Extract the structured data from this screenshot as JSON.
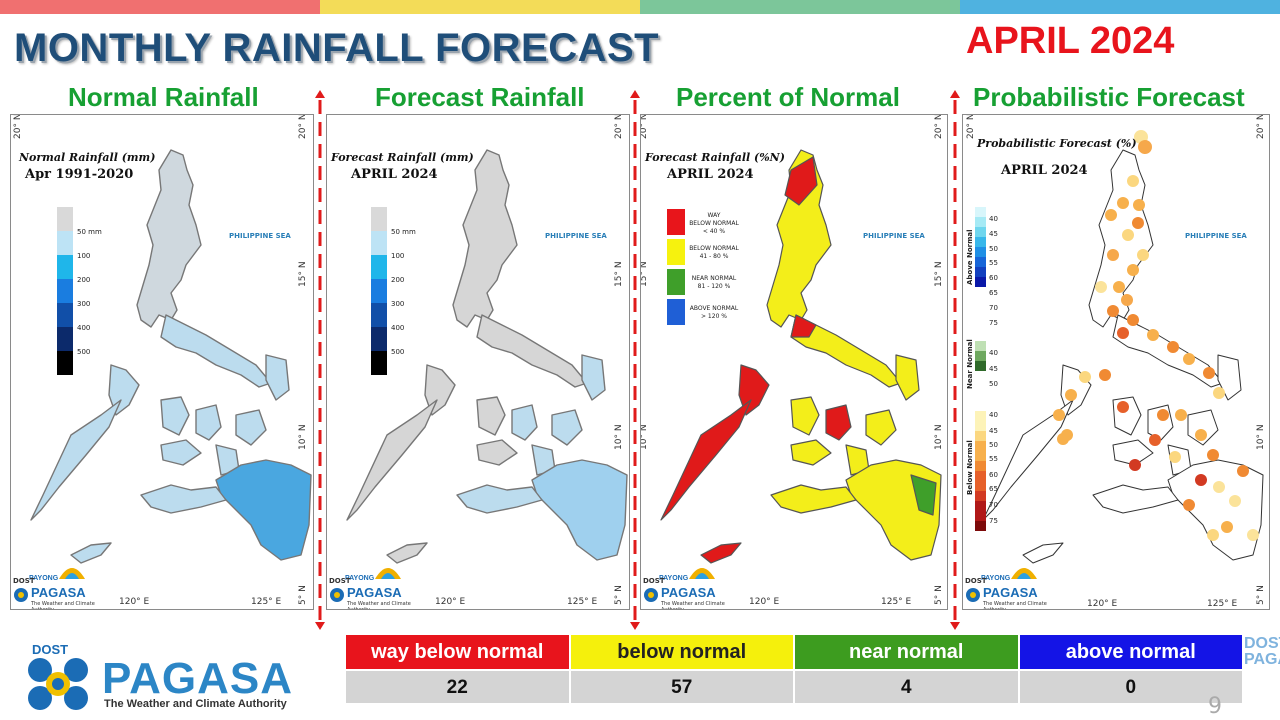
{
  "header": {
    "title": "MONTHLY RAINFALL FORECAST",
    "month": "APRIL 2024",
    "stripe_colors": [
      "#f07070",
      "#f3dc58",
      "#7cc69a",
      "#4fb2e0"
    ]
  },
  "panels": [
    {
      "title": "Normal Rainfall",
      "map_title": "Normal Rainfall (mm)",
      "map_subtitle": "Apr 1991-2020",
      "sea_label": "PHILIPPINE SEA",
      "legend": [
        {
          "label": "50 mm",
          "color": "#d9d9d9"
        },
        {
          "label": "100",
          "color": "#bde3f5"
        },
        {
          "label": "200",
          "color": "#1fb6ea"
        },
        {
          "label": "300",
          "color": "#1a7de0"
        },
        {
          "label": "400",
          "color": "#114fa8"
        },
        {
          "label": "500",
          "color": "#0c2a6b"
        },
        {
          "label": "",
          "color": "#000000"
        }
      ]
    },
    {
      "title": "Forecast Rainfall",
      "map_title": "Forecast Rainfall (mm)",
      "map_subtitle": "APRIL 2024",
      "sea_label": "PHILIPPINE SEA",
      "legend": [
        {
          "label": "50 mm",
          "color": "#d9d9d9"
        },
        {
          "label": "100",
          "color": "#bde3f5"
        },
        {
          "label": "200",
          "color": "#1fb6ea"
        },
        {
          "label": "300",
          "color": "#1a7de0"
        },
        {
          "label": "400",
          "color": "#114fa8"
        },
        {
          "label": "500",
          "color": "#0c2a6b"
        },
        {
          "label": "",
          "color": "#000000"
        }
      ]
    },
    {
      "title": "Percent of Normal",
      "map_title": "Forecast Rainfall (%N)",
      "map_subtitle": "APRIL 2024",
      "sea_label": "PHILIPPINE SEA",
      "legend": [
        {
          "line1": "WAY",
          "line2": "BELOW NORMAL",
          "line3": "< 40 %",
          "color": "#e8151b"
        },
        {
          "line1": "BELOW NORMAL",
          "line2": "41 - 80 %",
          "line3": "",
          "color": "#f6f20e"
        },
        {
          "line1": "NEAR NORMAL",
          "line2": "81 - 120 %",
          "line3": "",
          "color": "#3f9f2a"
        },
        {
          "line1": "ABOVE NORMAL",
          "line2": "> 120 %",
          "line3": "",
          "color": "#1f5fd6"
        }
      ]
    },
    {
      "title": "Probabilistic Forecast",
      "map_title": "Probabilistic Forecast (%)",
      "map_subtitle": "APRIL 2024",
      "sea_label": "PHILIPPINE SEA",
      "groups": [
        {
          "name": "Above Normal",
          "values": [
            "40",
            "45",
            "50",
            "55",
            "60",
            "65",
            "70",
            "75"
          ],
          "colors": [
            "#d8f6fb",
            "#a6eaf5",
            "#6fd6ee",
            "#38b7ea",
            "#1f8fe5",
            "#1765d8",
            "#1240bf",
            "#0a18a8"
          ]
        },
        {
          "name": "Near Normal",
          "values": [
            "40",
            "45",
            "50"
          ],
          "colors": [
            "#bfe0b4",
            "#6ea85f",
            "#2f6a2a"
          ]
        },
        {
          "name": "Below Normal",
          "values": [
            "40",
            "45",
            "50",
            "55",
            "60",
            "65",
            "70",
            "75"
          ],
          "colors": [
            "#fdf3b8",
            "#fbd77f",
            "#f7b04c",
            "#f08a33",
            "#e6602a",
            "#d23a22",
            "#b01818",
            "#7d0a0a"
          ]
        }
      ]
    }
  ],
  "map_axes": {
    "lat_labels": [
      "20° N",
      "15° N",
      "10° N",
      "5° N"
    ],
    "lon_labels": [
      "120° E",
      "125° E"
    ]
  },
  "branding_small": {
    "dost": "DOST",
    "payong": "PAYONG",
    "name": "PAGASA",
    "tagline": "The Weather and Climate Authority"
  },
  "branding": {
    "dost": "DOST",
    "name": "PAGASA",
    "tagline": "The Weather and Climate Authority"
  },
  "summary": {
    "headers": [
      {
        "label": "way below normal",
        "bg": "#e8141c",
        "fg": "#ffffff"
      },
      {
        "label": "below normal",
        "bg": "#f5f00c",
        "fg": "#222222"
      },
      {
        "label": "near normal",
        "bg": "#3d9c1f",
        "fg": "#ffffff"
      },
      {
        "label": "above normal",
        "bg": "#1414e6",
        "fg": "#ffffff"
      }
    ],
    "values": [
      "22",
      "57",
      "4",
      "0"
    ]
  },
  "ghost_text": [
    "DOST",
    "PAGASA"
  ],
  "page_mark": "9"
}
